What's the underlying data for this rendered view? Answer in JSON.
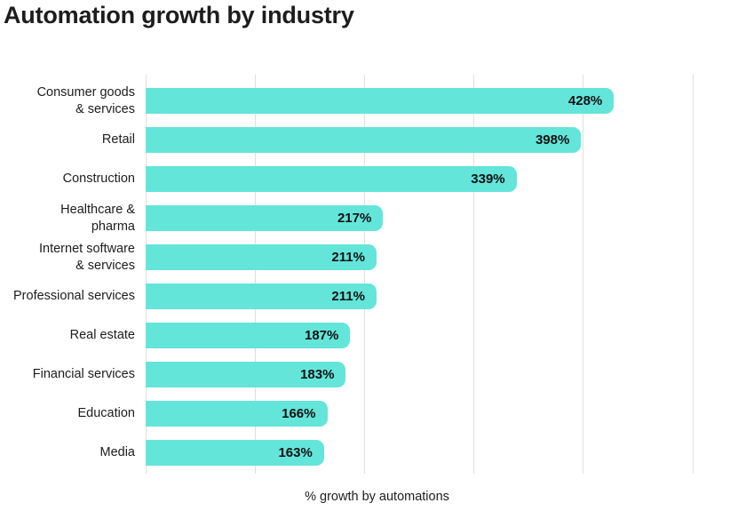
{
  "page": {
    "background": "#ffffff"
  },
  "chart_data": {
    "type": "bar",
    "orientation": "horizontal",
    "title": "Automation growth by industry",
    "xlabel": "% growth by automations",
    "ylabel": "",
    "xlim": [
      0,
      500
    ],
    "gridline_values": [
      0,
      100,
      200,
      300,
      400,
      500
    ],
    "grid": "vertical-only",
    "tick_labels_shown": false,
    "legend": false,
    "bar_color": "#63e5da",
    "grid_color": "#dfdfdf",
    "text_color": "#1d1d1d",
    "value_label_color": "#111111",
    "categories": [
      "Consumer goods\n& services",
      "Retail",
      "Construction",
      "Healthcare &\npharma",
      "Internet software\n& services",
      "Professional services",
      "Real estate",
      "Financial services",
      "Education",
      "Media"
    ],
    "values": [
      428,
      398,
      339,
      217,
      211,
      211,
      187,
      183,
      166,
      163
    ],
    "value_labels": [
      "428%",
      "398%",
      "339%",
      "217%",
      "211%",
      "211%",
      "187%",
      "183%",
      "166%",
      "163%"
    ]
  }
}
